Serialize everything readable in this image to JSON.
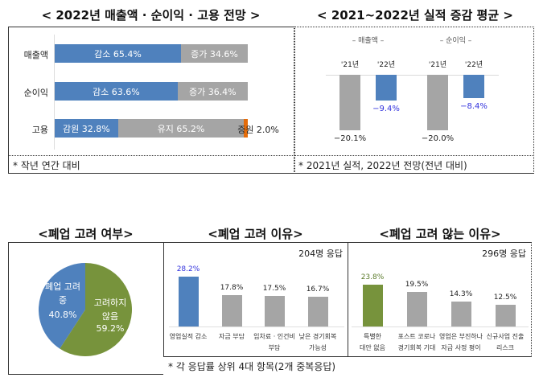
{
  "colors": {
    "blue": "#4f81bd",
    "gray": "#a5a5a5",
    "green": "#77933c",
    "orange": "#e46c0a"
  },
  "panel1": {
    "title": "< 2022년 매출액 · 순이익 · 고용 전망 >",
    "note": "* 작년 연간 대비"
  },
  "panel2": {
    "title": "< 2021~2022년 실적 증감 평균 >",
    "note": "* 2021년 실적, 2022년 전망(전년 대비)"
  },
  "panel3": {
    "title": "<폐업 고려 여부>"
  },
  "panel4": {
    "title": "<폐업 고려 이유>",
    "respondents": "204명 응답"
  },
  "panel5": {
    "title": "<폐업 고려 않는 이유>",
    "respondents": "296명 응답"
  },
  "bottom_note": "* 각 응답률 상위 4대 항목(2개 중복응답)",
  "chart_data": [
    {
      "type": "bar",
      "orientation": "horizontal-stacked",
      "title": "< 2022년 매출액 · 순이익 · 고용 전망 >",
      "categories": [
        "매출액",
        "순이익",
        "고용"
      ],
      "rows": [
        {
          "category": "매출액",
          "segments": [
            {
              "name": "감소",
              "value": 65.4,
              "label": "감소 65.4%",
              "color": "blue"
            },
            {
              "name": "증가",
              "value": 34.6,
              "label": "증가 34.6%",
              "color": "gray"
            }
          ]
        },
        {
          "category": "순이익",
          "segments": [
            {
              "name": "감소",
              "value": 63.6,
              "label": "감소 63.6%",
              "color": "blue"
            },
            {
              "name": "증가",
              "value": 36.4,
              "label": "증가 36.4%",
              "color": "gray"
            }
          ]
        },
        {
          "category": "고용",
          "segments": [
            {
              "name": "감원",
              "value": 32.8,
              "label": "감원 32.8%",
              "color": "blue"
            },
            {
              "name": "유지",
              "value": 65.2,
              "label": "유지 65.2%",
              "color": "gray"
            },
            {
              "name": "증원",
              "value": 2.0,
              "label": "증원 2.0%",
              "color": "orange"
            }
          ]
        }
      ],
      "xlim": [
        0,
        100
      ]
    },
    {
      "type": "bar",
      "title": "< 2021~2022년 실적 증감 평균 >",
      "groups": [
        {
          "name": "– 매출액 –",
          "bars": [
            {
              "x": "'21년",
              "value": -20.1,
              "label": "−20.1%",
              "color": "gray"
            },
            {
              "x": "'22년",
              "value": -9.4,
              "label": "−9.4%",
              "color": "blue"
            }
          ]
        },
        {
          "name": "– 순이익 –",
          "bars": [
            {
              "x": "'21년",
              "value": -20.0,
              "label": "−20.0%",
              "color": "gray"
            },
            {
              "x": "'22년",
              "value": -8.4,
              "label": "−8.4%",
              "color": "blue"
            }
          ]
        }
      ]
    },
    {
      "type": "pie",
      "title": "<폐업 고려 여부>",
      "slices": [
        {
          "name": "폐업 고려 중",
          "value": 40.8,
          "label": "40.8%",
          "color": "blue"
        },
        {
          "name": "고려하지 않음",
          "value": 59.2,
          "label": "59.2%",
          "color": "green"
        }
      ]
    },
    {
      "type": "bar",
      "title": "<폐업 고려 이유>",
      "categories": [
        "영업실적 감소",
        "자금 부담",
        "임차료 · 인건비 부담",
        "낮은 경기회복 가능성"
      ],
      "category_lines": [
        [
          "영업실적 감소"
        ],
        [
          "자금 부담"
        ],
        [
          "임차료 · 인건비",
          "부담"
        ],
        [
          "낮은 경기회복",
          "가능성"
        ]
      ],
      "values": [
        28.2,
        17.8,
        17.5,
        16.7
      ],
      "labels": [
        "28.2%",
        "17.8%",
        "17.5%",
        "16.7%"
      ],
      "colors": [
        "blue",
        "gray",
        "gray",
        "gray"
      ],
      "label_colors": [
        "#3333dd",
        "#222",
        "#222",
        "#222"
      ]
    },
    {
      "type": "bar",
      "title": "<폐업 고려 않는 이유>",
      "categories": [
        "특별한 대안 없음",
        "포스트 코로나 경기회복 기대",
        "영업은 부진하나 자금 사정 평이",
        "신규사업 진출 리스크"
      ],
      "category_lines": [
        [
          "특별한",
          "대안 없음"
        ],
        [
          "포스트 코로나",
          "경기회복 기대"
        ],
        [
          "영업은 부진하나",
          "자금 사정 평이"
        ],
        [
          "신규사업 진출",
          "리스크"
        ]
      ],
      "values": [
        23.8,
        19.5,
        14.3,
        12.5
      ],
      "labels": [
        "23.8%",
        "19.5%",
        "14.3%",
        "12.5%"
      ],
      "colors": [
        "green",
        "gray",
        "gray",
        "gray"
      ],
      "label_colors": [
        "#5a7a2a",
        "#222",
        "#222",
        "#222"
      ]
    }
  ]
}
